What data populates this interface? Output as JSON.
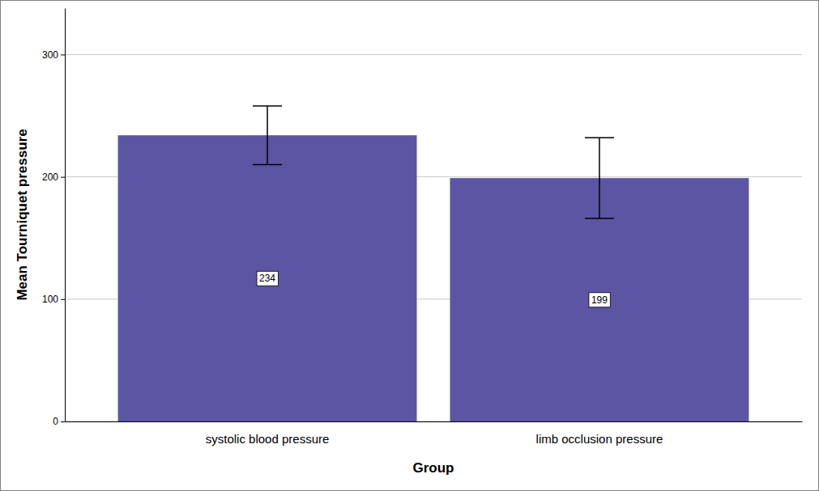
{
  "chart_data": {
    "type": "bar",
    "categories": [
      "systolic blood pressure",
      "limb occlusion pressure"
    ],
    "values": [
      234,
      199
    ],
    "errors": [
      24,
      33
    ],
    "color": "#5b55a3",
    "x_label": "Group",
    "y_label": "Mean Tourniquet pressure",
    "ylim": [
      0,
      338
    ],
    "yticks": [
      0,
      100,
      200,
      300
    ],
    "grid": true,
    "data_labels": true
  }
}
